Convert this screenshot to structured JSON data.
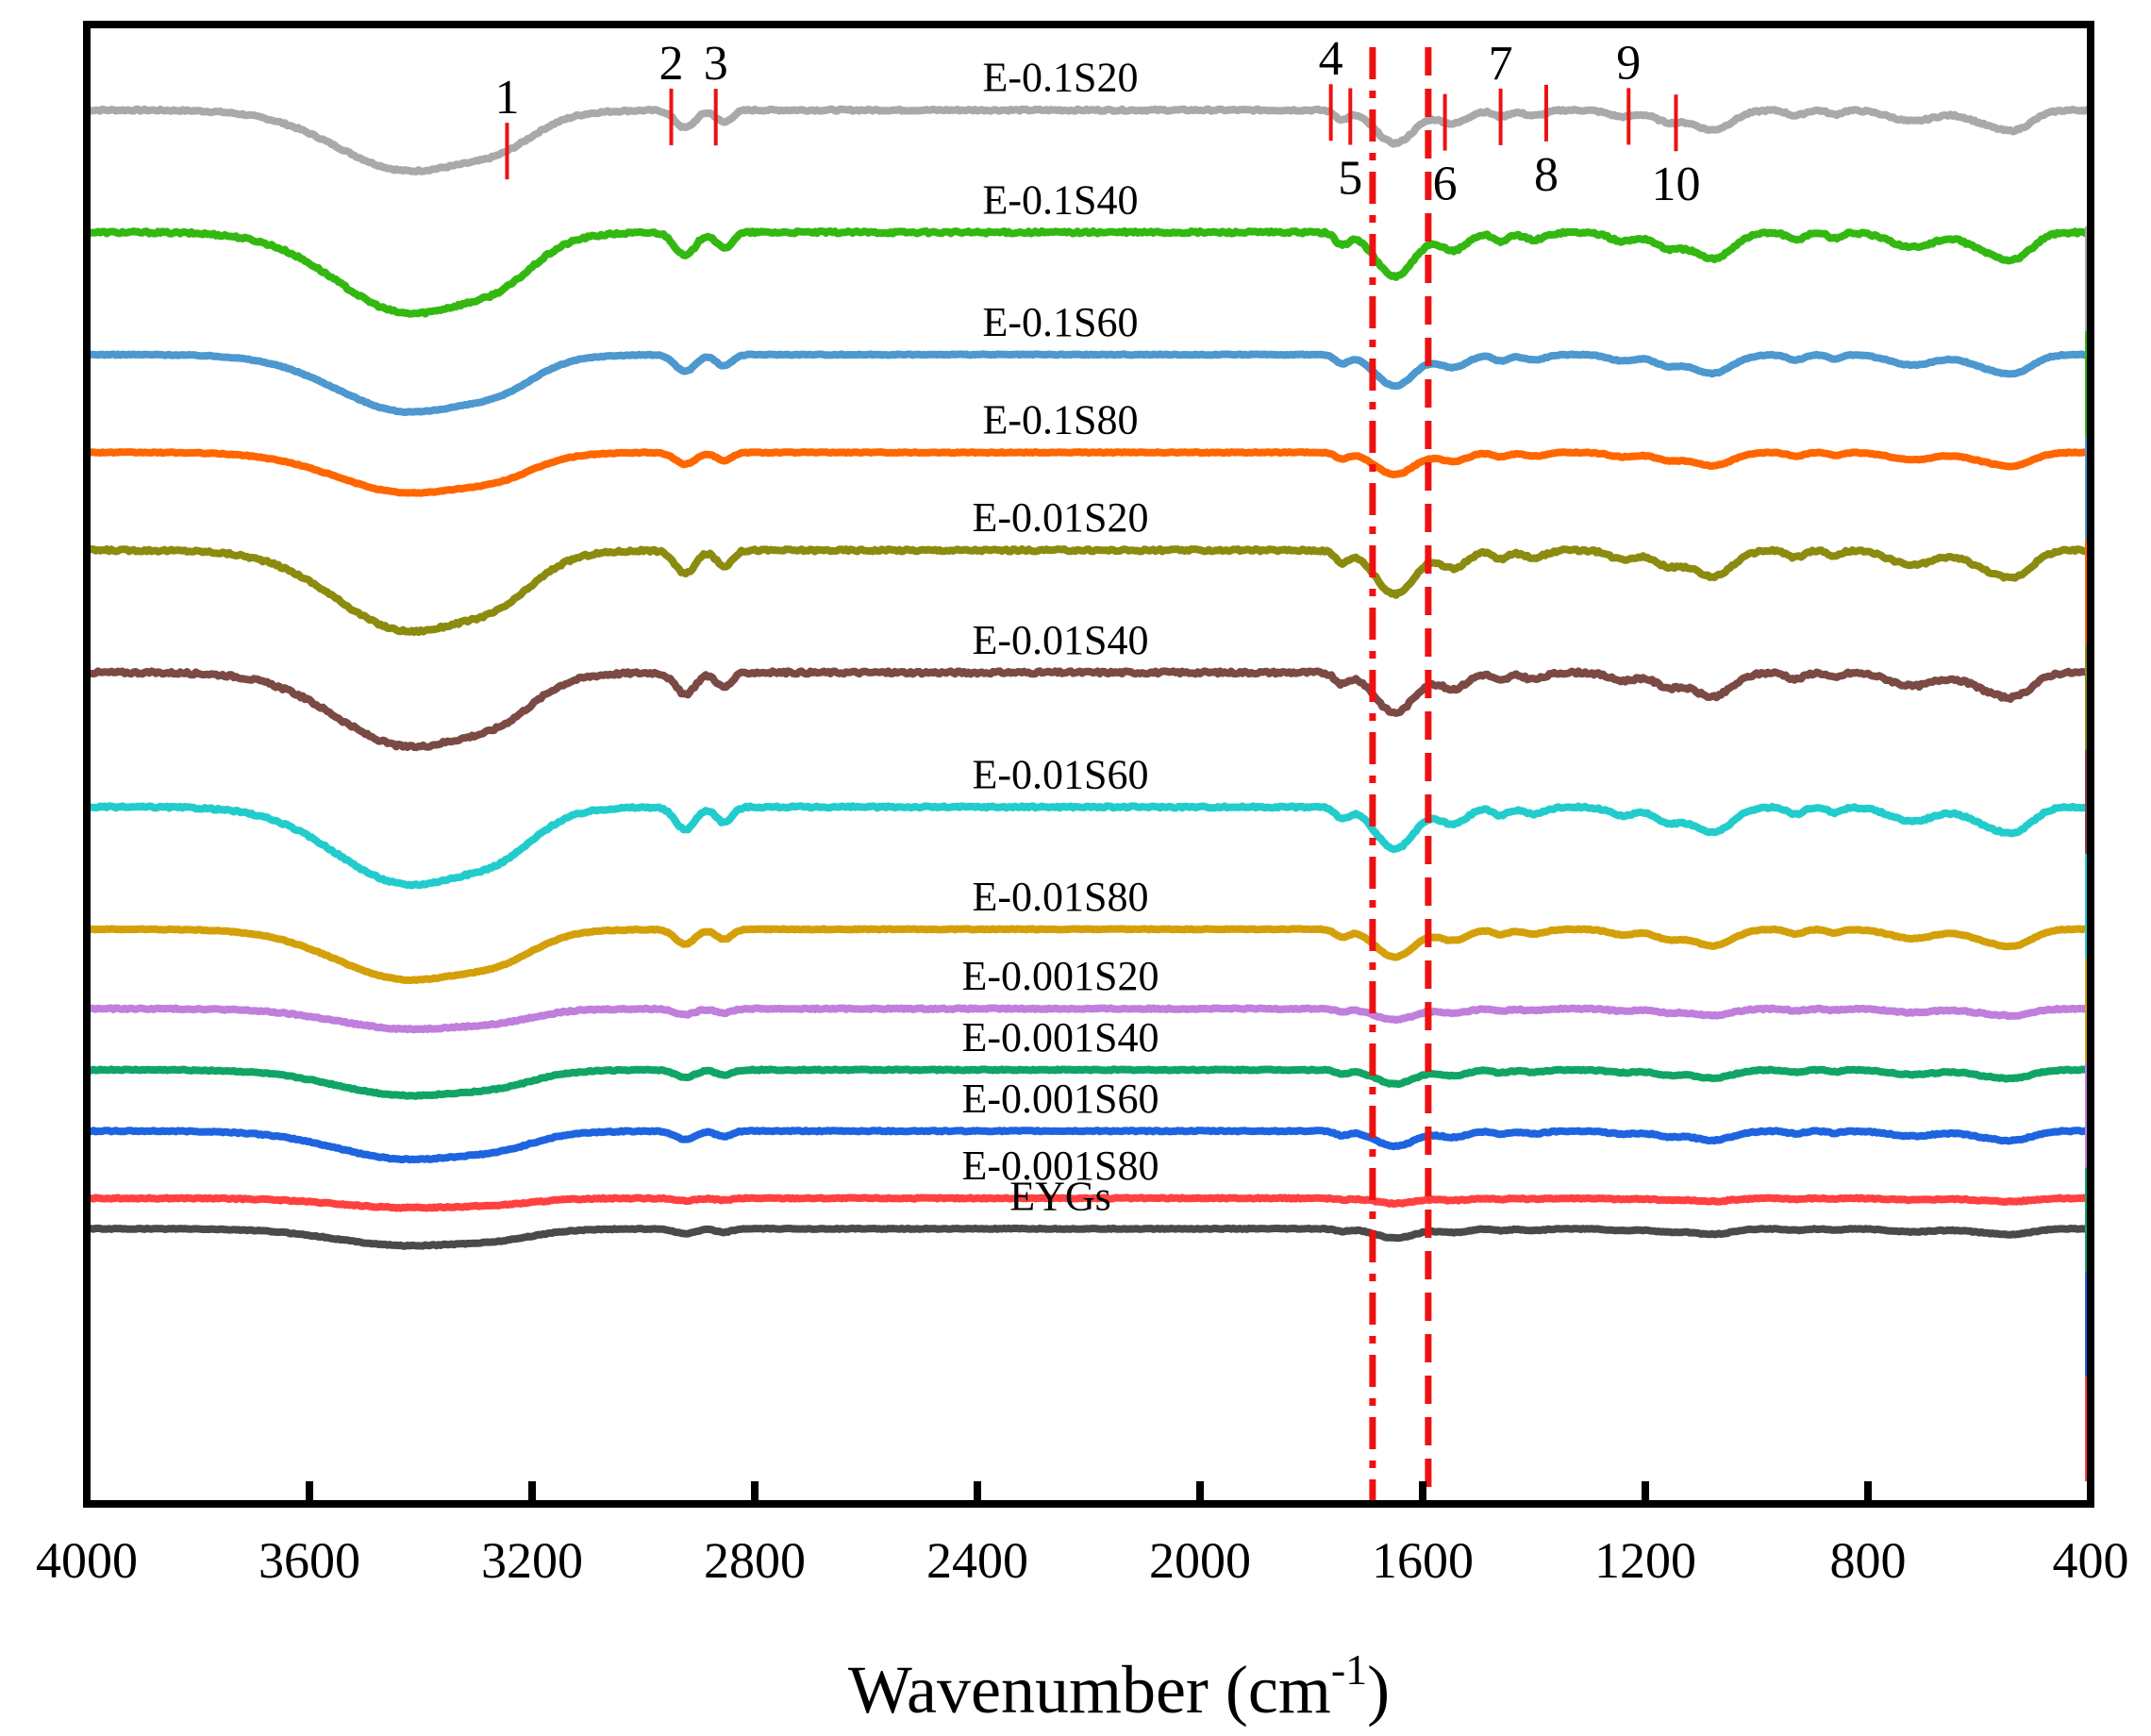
{
  "chart_data": {
    "type": "line",
    "title": "",
    "xlabel": "Wavenumber (cm",
    "xlabel_sup": "-1",
    "xlabel_close": ")",
    "ylabel": "",
    "xlim": [
      4000,
      400
    ],
    "x_reversed": true,
    "y_ticks_shown": false,
    "x_ticks": [
      4000,
      3600,
      3200,
      2800,
      2400,
      2000,
      1600,
      1200,
      800,
      400
    ],
    "x_tick_labels": [
      "4000",
      "3600",
      "3200",
      "2800",
      "2400",
      "2000",
      "1600",
      "1200",
      "800",
      "400"
    ],
    "vlines": [
      {
        "x": 1690,
        "color": "#ee1111",
        "style": "dash-dot"
      },
      {
        "x": 1590,
        "color": "#ee1111",
        "style": "dashed"
      }
    ],
    "peak_markers": [
      {
        "label": "1",
        "x": 3245,
        "label_pos": "above"
      },
      {
        "label": "2",
        "x": 2950,
        "label_pos": "above"
      },
      {
        "label": "3",
        "x": 2870,
        "label_pos": "above"
      },
      {
        "label": "4",
        "x": 1765,
        "label_pos": "above"
      },
      {
        "label": "5",
        "x": 1730,
        "label_pos": "below"
      },
      {
        "label": "6",
        "x": 1560,
        "label_pos": "below"
      },
      {
        "label": "7",
        "x": 1460,
        "label_pos": "above"
      },
      {
        "label": "8",
        "x": 1378,
        "label_pos": "below"
      },
      {
        "label": "9",
        "x": 1230,
        "label_pos": "above"
      },
      {
        "label": "10",
        "x": 1145,
        "label_pos": "below"
      }
    ],
    "series": [
      {
        "name": "E-0.1S20",
        "color": "#a9a9a9",
        "baseline": 8.6,
        "scale": 0.9,
        "noise": 0.008
      },
      {
        "name": "E-0.1S40",
        "color": "#33b811",
        "baseline": 7.6,
        "scale": 1.2,
        "noise": 0.01
      },
      {
        "name": "E-0.1S60",
        "color": "#4d98cf",
        "baseline": 6.6,
        "scale": 0.85,
        "noise": 0.004
      },
      {
        "name": "E-0.1S80",
        "color": "#ff6600",
        "baseline": 5.8,
        "scale": 0.6,
        "noise": 0.004
      },
      {
        "name": "E-0.01S20",
        "color": "#8b8b0f",
        "baseline": 5.0,
        "scale": 1.2,
        "noise": 0.01
      },
      {
        "name": "E-0.01S40",
        "color": "#7b4a45",
        "baseline": 4.0,
        "scale": 1.1,
        "noise": 0.012
      },
      {
        "name": "E-0.01S60",
        "color": "#22cccc",
        "baseline": 2.9,
        "scale": 1.15,
        "noise": 0.008
      },
      {
        "name": "E-0.01S80",
        "color": "#d4a00a",
        "baseline": 1.9,
        "scale": 0.75,
        "noise": 0.004
      },
      {
        "name": "E-0.001S20",
        "color": "#c07fdc",
        "baseline": 1.25,
        "scale": 0.3,
        "noise": 0.006
      },
      {
        "name": "E-0.001S40",
        "color": "#11a565",
        "baseline": 0.75,
        "scale": 0.38,
        "noise": 0.005
      },
      {
        "name": "E-0.001S60",
        "color": "#1e64e0",
        "baseline": 0.25,
        "scale": 0.42,
        "noise": 0.005
      },
      {
        "name": "E-0.001S80",
        "color": "#ff4040",
        "baseline": -0.3,
        "scale": 0.14,
        "noise": 0.005
      },
      {
        "name": "EYGs",
        "color": "#4a4a4a",
        "baseline": -0.55,
        "scale": 0.25,
        "noise": 0.004
      }
    ]
  }
}
